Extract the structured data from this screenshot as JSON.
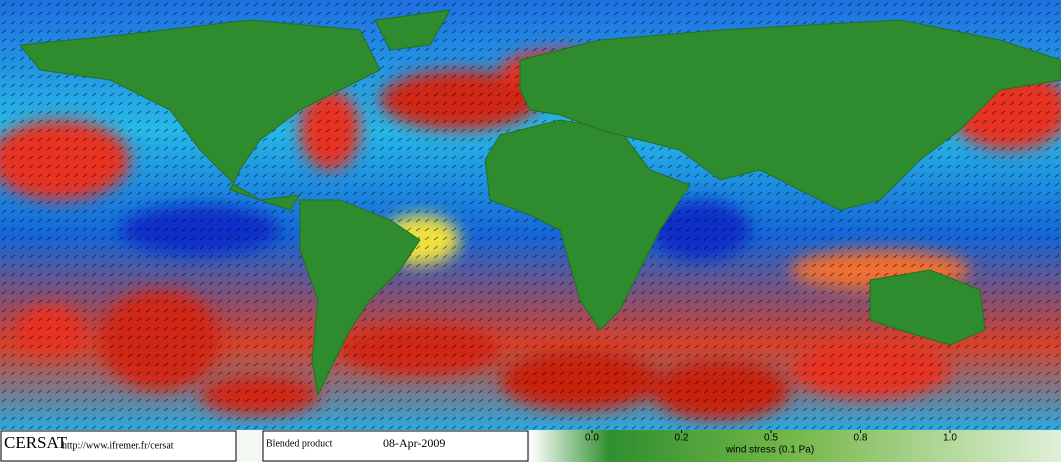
{
  "branding": {
    "logo": "CERSAT",
    "url": "http://www.ifremer.fr/cersat"
  },
  "product": {
    "label": "Blended product",
    "date": "08-Apr-2009"
  },
  "colorbar": {
    "ticks": [
      {
        "value": 0,
        "label": "0.0"
      },
      0.2,
      0.5,
      0.8,
      {
        "value": 1,
        "label": "1.0"
      }
    ],
    "label": "wind stress (0.1 Pa)"
  }
}
